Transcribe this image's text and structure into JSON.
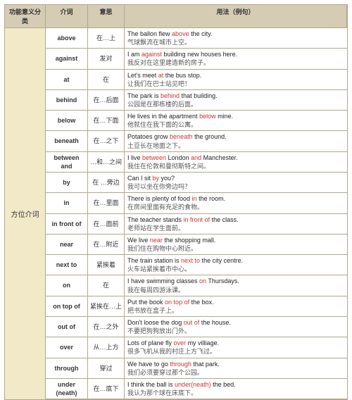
{
  "colors": {
    "header_bg": "#d6ccb4",
    "category_bg": "#f2e9c9",
    "border": "#b0a890",
    "highlight": "#c33",
    "text": "#333"
  },
  "headers": {
    "c1": "功能意义分类",
    "c2": "介词",
    "c3": "意思",
    "c4": "用法（例句）"
  },
  "category": "方位介词",
  "rows": [
    {
      "prep": "above",
      "mean": "在…上",
      "en_pre": "The ballon flew ",
      "en_hl": "above",
      "en_post": " the city.",
      "zh": "气球飘流在城市上空。"
    },
    {
      "prep": "against",
      "mean": "发对",
      "en_pre": "I am ",
      "en_hl": "against",
      "en_post": " building new houses here.",
      "zh": "我反对在这里建造新的房子。"
    },
    {
      "prep": "at",
      "mean": "在",
      "en_pre": "Let's meet ",
      "en_hl": "at",
      "en_post": " the bus stop.",
      "zh": "让我们在巴士站见吧！"
    },
    {
      "prep": "behind",
      "mean": "在…后面",
      "en_pre": "The park is ",
      "en_hl": "behind",
      "en_post": " that building.",
      "zh": "公园是在那栋楼的后面。"
    },
    {
      "prep": "below",
      "mean": "在…下面",
      "en_pre": "He lives in the apartment ",
      "en_hl": "below",
      "en_post": " mine.",
      "zh": "他就住在我下面的公寓。"
    },
    {
      "prep": "beneath",
      "mean": "在…之下",
      "en_pre": "Potatoes grow ",
      "en_hl": "beneath",
      "en_post": " the ground.",
      "zh": "土豆长在地面之下。"
    },
    {
      "prep": "between and",
      "mean": "…和…之间",
      "en_pre": "I live ",
      "en_hl": "between",
      "en_mid": " London ",
      "en_hl2": "and",
      "en_post": " Manchester.",
      "zh": "我住在伦敦和曼彻斯特之间。"
    },
    {
      "prep": "by",
      "mean": "在 …旁边",
      "en_pre": " Can I sit ",
      "en_hl": "by",
      "en_post": " you?",
      "zh": "我可以坐在你旁边吗？"
    },
    {
      "prep": "in",
      "mean": "在…里面",
      "en_pre": "There is plenty of food ",
      "en_hl": "in",
      "en_post": " the room.",
      "zh": "在房间里面有充足的食物。"
    },
    {
      "prep": "in front of",
      "mean": "在…面前",
      "en_pre": "The teacher stands ",
      "en_hl": "in front of",
      "en_post": " the class.",
      "zh": "老师站在学生面前。"
    },
    {
      "prep": "near",
      "mean": "在…附近",
      "en_pre": "We live ",
      "en_hl": "near",
      "en_post": " the shopping mall.",
      "zh": "我们住在购物中心附近。"
    },
    {
      "prep": "next to",
      "mean": "紧挨着",
      "en_pre": "The train station is ",
      "en_hl": "next to",
      "en_post": " the city centre.",
      "zh": "火车站紧挨着市中心。"
    },
    {
      "prep": "on",
      "mean": "在",
      "en_pre": "I have swimming classes ",
      "en_hl": "on",
      "en_post": " Thursdays.",
      "zh": "我在每周四游泳课。"
    },
    {
      "prep": "on top of",
      "mean": "紧挨在…上",
      "en_pre": "Put the book ",
      "en_hl": "on top of",
      "en_post": " the box.",
      "zh": "把书放在盒子上。"
    },
    {
      "prep": "out of",
      "mean": "在…之外",
      "en_pre": "Don't loose the dog ",
      "en_hl": "out of",
      "en_post": " the house.",
      "zh": "不要把狗狗放出门外。"
    },
    {
      "prep": "over",
      "mean": "从…上方",
      "en_pre": "Lots of plane fly ",
      "en_hl": "over",
      "en_post": " my villiage.",
      "zh": "很多飞机从我的村庄上方飞过。"
    },
    {
      "prep": "through",
      "mean": "穿过",
      "en_pre": "We have to go ",
      "en_hl": "through",
      "en_post": " that park.",
      "zh": "我们必须要穿过那个公园。"
    },
    {
      "prep": "under (neath)",
      "mean": "在…底下",
      "en_pre": "I think the ball is ",
      "en_hl": "under(neath)",
      "en_post": " the bed.",
      "zh": "我认为那个球在床底下。"
    }
  ]
}
